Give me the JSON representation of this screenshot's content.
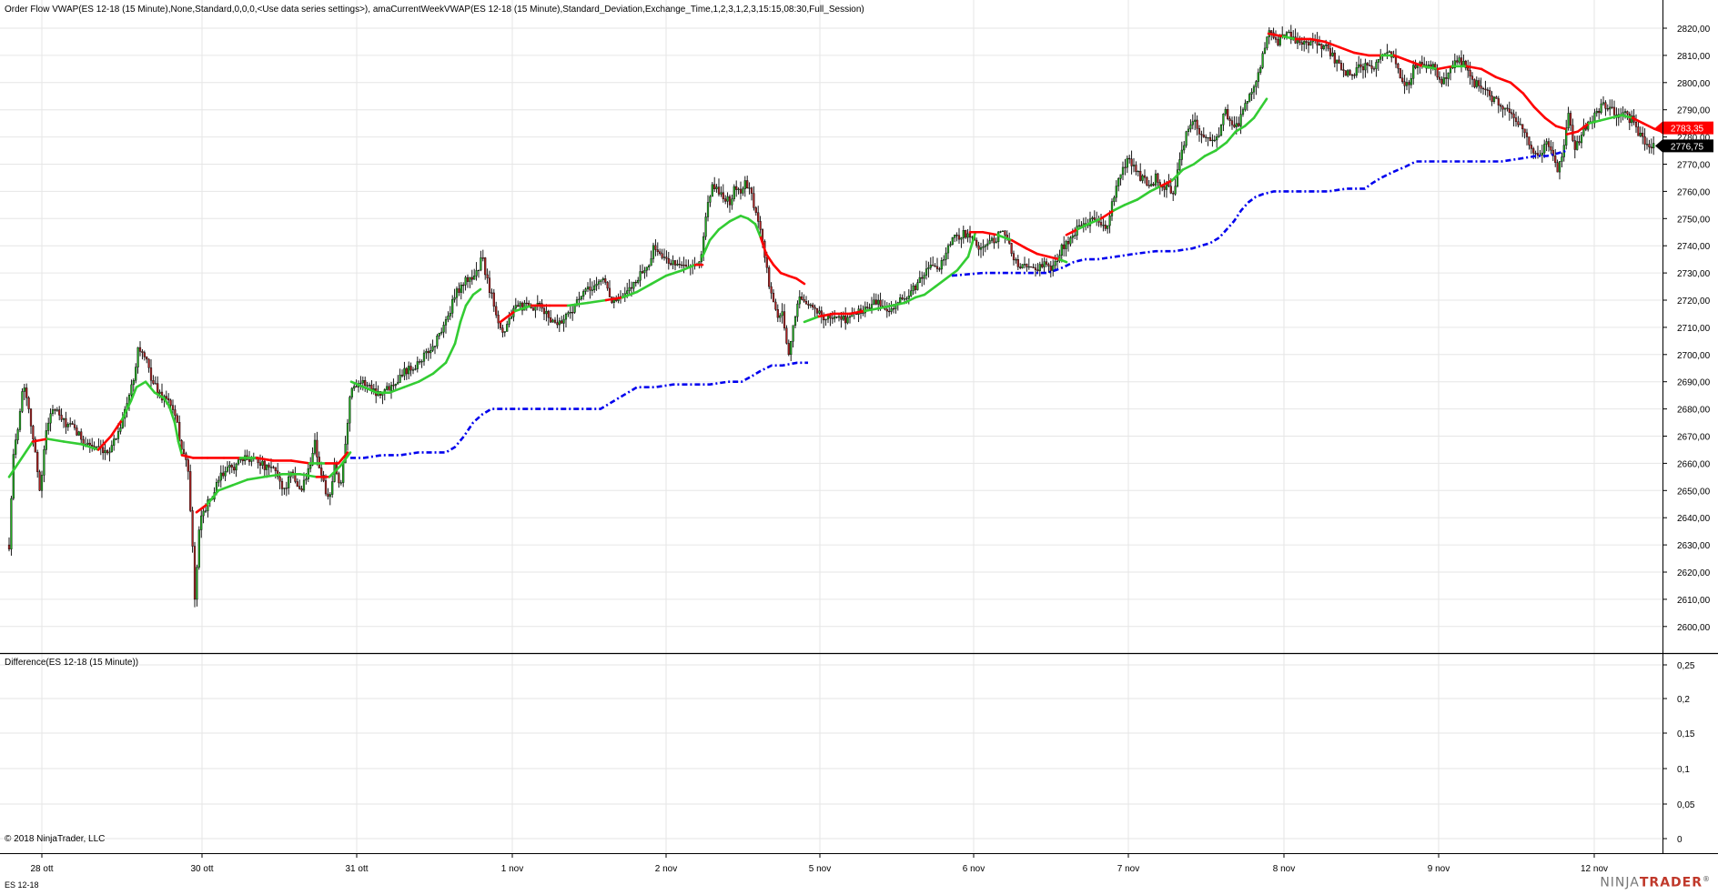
{
  "main_panel": {
    "title": "Order Flow VWAP(ES 12-18 (15 Minute),None,Standard,0,0,0,<Use data series settings>), amaCurrentWeekVWAP(ES 12-18 (15 Minute),Standard_Deviation,Exchange_Time,1,2,3,1,2,3,15:15,08:30,Full_Session)",
    "y_ticks": [
      "2820,00",
      "2810,00",
      "2800,00",
      "2790,00",
      "2780,00",
      "2770,00",
      "2760,00",
      "2750,00",
      "2740,00",
      "2730,00",
      "2720,00",
      "2710,00",
      "2700,00",
      "2690,00",
      "2680,00",
      "2670,00",
      "2660,00",
      "2650,00",
      "2640,00",
      "2630,00",
      "2620,00",
      "2610,00",
      "2600,00"
    ],
    "price_label_red": "2783,35",
    "price_label_black": "2776,75"
  },
  "lower_panel": {
    "title": "Difference(ES 12-18 (15 Minute))",
    "y_ticks": [
      "0,25",
      "0,2",
      "0,15",
      "0,1",
      "0,05",
      "0"
    ],
    "copyright": "© 2018 NinjaTrader, LLC"
  },
  "x_axis": {
    "ticks": [
      "28 ott",
      "30 ott",
      "31 ott",
      "1 nov",
      "2 nov",
      "5 nov",
      "6 nov",
      "7 nov",
      "8 nov",
      "9 nov",
      "12 nov"
    ]
  },
  "footer": {
    "instrument": "ES 12-18",
    "brand_ninja": "NINJA",
    "brand_trader": "TRADER",
    "brand_mark": "®"
  },
  "colors": {
    "vwap_up": "#33cc33",
    "vwap_down": "#ff0000",
    "weekly_vwap": "#0000ee",
    "candle_up": "#22aa22",
    "candle_down": "#aa2222",
    "grid": "#e6e6e6"
  },
  "chart_data": {
    "type": "candlestick",
    "x_labels": [
      "28 ott",
      "30 ott",
      "31 ott",
      "1 nov",
      "2 nov",
      "5 nov",
      "6 nov",
      "7 nov",
      "8 nov",
      "9 nov",
      "12 nov"
    ],
    "ylim": [
      2596,
      2825
    ],
    "series": [
      {
        "name": "Order Flow VWAP",
        "points": [
          [
            0.0,
            2655
          ],
          [
            0.3,
            2660
          ],
          [
            0.6,
            2668
          ],
          [
            0.9,
            2668
          ],
          [
            1.2,
            2666
          ],
          [
            1.6,
            2672
          ],
          [
            1.9,
            2677
          ],
          [
            2.2,
            2686
          ],
          [
            2.4,
            2684
          ],
          [
            2.6,
            2676
          ],
          [
            2.9,
            2676
          ],
          [
            3.2,
            2674
          ],
          [
            3.6,
            2673
          ],
          [
            3.8,
            2670
          ],
          [
            4.0,
            2662
          ],
          [
            4.25,
            2648
          ],
          [
            4.6,
            2652
          ],
          [
            5.0,
            2653
          ],
          [
            5.3,
            2655
          ],
          [
            5.7,
            2656
          ],
          [
            6.0,
            2658
          ],
          [
            6.3,
            2657
          ],
          [
            6.6,
            2656
          ],
          [
            7.0,
            2660
          ],
          [
            7.3,
            2665
          ],
          [
            7.5,
            2690
          ],
          [
            7.8,
            2689
          ],
          [
            8.2,
            2687
          ],
          [
            8.6,
            2688
          ],
          [
            9.0,
            2691
          ],
          [
            9.4,
            2694
          ],
          [
            9.6,
            2702
          ],
          [
            9.8,
            2712
          ],
          [
            10.0,
            2720
          ],
          [
            10.2,
            2724
          ],
          [
            10.5,
            2727
          ],
          [
            10.8,
            2712
          ],
          [
            11.2,
            2715
          ],
          [
            11.6,
            2717
          ],
          [
            12.0,
            2718
          ],
          [
            12.4,
            2718
          ],
          [
            12.8,
            2719
          ],
          [
            13.2,
            2721
          ],
          [
            13.7,
            2722
          ],
          [
            14.0,
            2726
          ],
          [
            14.4,
            2729
          ],
          [
            14.8,
            2731
          ],
          [
            15.2,
            2733
          ],
          [
            15.5,
            2737
          ],
          [
            15.8,
            2746
          ],
          [
            16.1,
            2750
          ],
          [
            16.5,
            2752
          ],
          [
            16.8,
            2747
          ],
          [
            17.2,
            2736
          ],
          [
            17.6,
            2731
          ],
          [
            17.7,
            2715
          ],
          [
            18.0,
            2715
          ],
          [
            18.5,
            2716
          ],
          [
            19.0,
            2716
          ],
          [
            19.4,
            2716
          ],
          [
            19.8,
            2717
          ],
          [
            20.2,
            2718
          ],
          [
            20.6,
            2720
          ],
          [
            21.0,
            2722
          ],
          [
            21.4,
            2726
          ],
          [
            21.8,
            2730
          ],
          [
            22.2,
            2733
          ],
          [
            22.6,
            2733
          ],
          [
            22.9,
            2747
          ],
          [
            23.3,
            2742
          ],
          [
            23.8,
            2738
          ],
          [
            24.1,
            2744
          ],
          [
            24.4,
            2750
          ],
          [
            24.7,
            2752
          ],
          [
            25.2,
            2758
          ],
          [
            25.6,
            2760
          ],
          [
            26.0,
            2763
          ],
          [
            26.4,
            2767
          ],
          [
            26.8,
            2770
          ],
          [
            27.2,
            2775
          ],
          [
            27.6,
            2781
          ],
          [
            27.9,
            2789
          ],
          [
            27.9,
            2820
          ],
          [
            28.5,
            2816
          ],
          [
            29.0,
            2815
          ],
          [
            29.5,
            2811
          ],
          [
            29.8,
            2810
          ],
          [
            30.2,
            2810
          ],
          [
            30.6,
            2808
          ],
          [
            31.0,
            2806
          ],
          [
            31.4,
            2806
          ],
          [
            32.0,
            2806
          ],
          [
            32.5,
            2802
          ],
          [
            33.0,
            2800
          ],
          [
            33.4,
            2796
          ],
          [
            33.9,
            2790
          ],
          [
            34.2,
            2785
          ],
          [
            34.5,
            2783
          ],
          [
            34.5,
            2781
          ],
          [
            34.9,
            2784
          ],
          [
            35.3,
            2786
          ],
          [
            35.8,
            2787
          ],
          [
            36.1,
            2787
          ],
          [
            36.4,
            2784
          ],
          [
            36.7,
            2783
          ]
        ]
      },
      {
        "name": "amaCurrentWeekVWAP",
        "points": [
          [
            7.4,
            2662
          ],
          [
            8.0,
            2662
          ],
          [
            8.6,
            2663
          ],
          [
            9.4,
            2663
          ],
          [
            9.8,
            2664
          ],
          [
            10.1,
            2669
          ],
          [
            10.5,
            2676
          ],
          [
            10.8,
            2679
          ],
          [
            11.6,
            2679
          ],
          [
            12.4,
            2679
          ],
          [
            13.2,
            2680
          ],
          [
            13.6,
            2682
          ],
          [
            13.9,
            2685
          ],
          [
            14.3,
            2688
          ],
          [
            15.0,
            2688
          ],
          [
            15.6,
            2689
          ],
          [
            16.2,
            2689
          ],
          [
            16.7,
            2690
          ],
          [
            17.0,
            2692
          ],
          [
            17.3,
            2695
          ],
          [
            17.7,
            2696
          ],
          [
            21.0,
            2730
          ],
          [
            22.8,
            2730
          ],
          [
            23.1,
            2732
          ],
          [
            23.4,
            2734
          ],
          [
            23.8,
            2735
          ],
          [
            24.2,
            2736
          ],
          [
            24.8,
            2737
          ],
          [
            25.6,
            2738
          ],
          [
            26.4,
            2740
          ],
          [
            26.7,
            2742
          ],
          [
            27.0,
            2746
          ],
          [
            27.3,
            2751
          ],
          [
            27.6,
            2756
          ],
          [
            27.8,
            2759
          ],
          [
            28.5,
            2760
          ],
          [
            29.2,
            2760
          ],
          [
            30.2,
            2761
          ],
          [
            30.6,
            2762
          ],
          [
            30.9,
            2765
          ],
          [
            31.3,
            2768
          ],
          [
            31.7,
            2771
          ],
          [
            32.6,
            2771
          ],
          [
            33.4,
            2771
          ],
          [
            34.0,
            2772
          ],
          [
            34.5,
            2773
          ],
          [
            34.7,
            2774
          ]
        ]
      }
    ]
  }
}
